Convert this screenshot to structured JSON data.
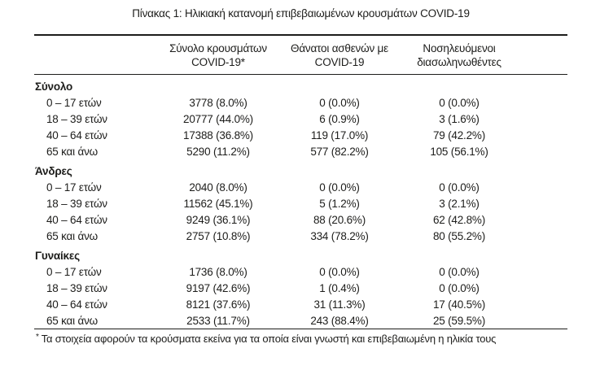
{
  "title": "Πίνακας 1: Ηλικιακή κατανομή επιβεβαιωμένων κρουσμάτων COVID-19",
  "colors": {
    "text": "#1d1d1b",
    "background": "#ffffff",
    "rule": "#1d1d1b"
  },
  "table": {
    "columns": [
      {
        "line1": "Σύνολο κρουσμάτων",
        "line2": "COVID-19*"
      },
      {
        "line1": "Θάνατοι ασθενών με",
        "line2": "COVID-19"
      },
      {
        "line1": "Νοσηλευόμενοι",
        "line2": "διασωληνωθέντες"
      }
    ],
    "sections": [
      {
        "label": "Σύνολο",
        "rows": [
          {
            "age": "0 – 17 ετών",
            "cases": "3778 (8.0%)",
            "deaths": "0 (0.0%)",
            "intubated": "0 (0.0%)"
          },
          {
            "age": "18 – 39 ετών",
            "cases": "20777 (44.0%)",
            "deaths": "6 (0.9%)",
            "intubated": "3 (1.6%)"
          },
          {
            "age": "40 – 64 ετών",
            "cases": "17388 (36.8%)",
            "deaths": "119 (17.0%)",
            "intubated": "79 (42.2%)"
          },
          {
            "age": "65 και άνω",
            "cases": "5290 (11.2%)",
            "deaths": "577 (82.2%)",
            "intubated": "105 (56.1%)"
          }
        ]
      },
      {
        "label": "Άνδρες",
        "rows": [
          {
            "age": "0 – 17 ετών",
            "cases": "2040 (8.0%)",
            "deaths": "0 (0.0%)",
            "intubated": "0 (0.0%)"
          },
          {
            "age": "18 – 39 ετών",
            "cases": "11562 (45.1%)",
            "deaths": "5 (1.2%)",
            "intubated": "3 (2.1%)"
          },
          {
            "age": "40 – 64 ετών",
            "cases": "9249 (36.1%)",
            "deaths": "88 (20.6%)",
            "intubated": "62 (42.8%)"
          },
          {
            "age": "65 και άνω",
            "cases": "2757 (10.8%)",
            "deaths": "334 (78.2%)",
            "intubated": "80 (55.2%)"
          }
        ]
      },
      {
        "label": "Γυναίκες",
        "rows": [
          {
            "age": "0 – 17 ετών",
            "cases": "1736 (8.0%)",
            "deaths": "0 (0.0%)",
            "intubated": "0 (0.0%)"
          },
          {
            "age": "18 – 39 ετών",
            "cases": "9197 (42.6%)",
            "deaths": "1 (0.4%)",
            "intubated": "0 (0.0%)"
          },
          {
            "age": "40 – 64 ετών",
            "cases": "8121 (37.6%)",
            "deaths": "31 (11.3%)",
            "intubated": "17 (40.5%)"
          },
          {
            "age": "65 και άνω",
            "cases": "2533 (11.7%)",
            "deaths": "243 (88.4%)",
            "intubated": "25 (59.5%)"
          }
        ]
      }
    ],
    "footnote_marker": "*",
    "footnote": "Τα στοιχεία αφορούν τα κρούσματα εκείνα για τα οποία είναι γνωστή και επιβεβαιωμένη η ηλικία τους"
  }
}
